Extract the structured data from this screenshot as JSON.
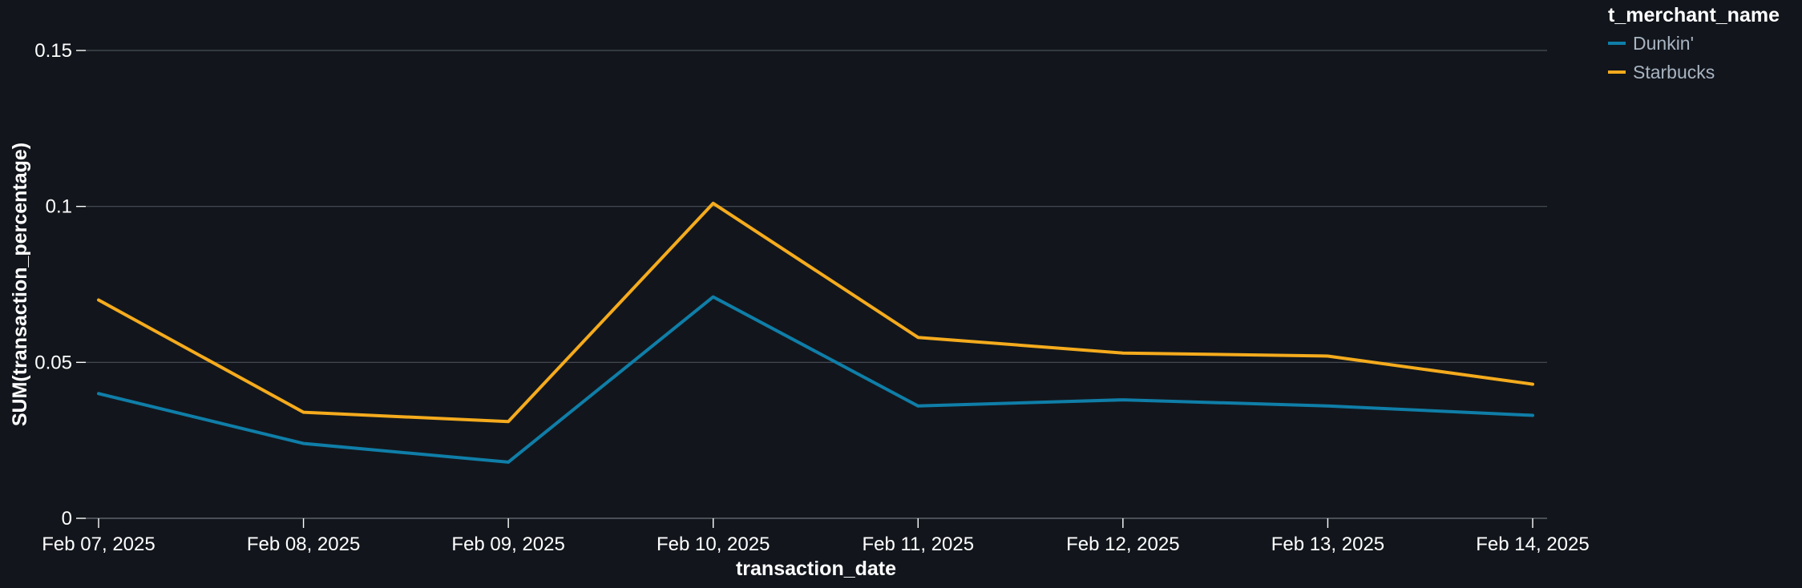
{
  "chart_data": {
    "type": "line",
    "x": [
      "Feb 07, 2025",
      "Feb 08, 2025",
      "Feb 09, 2025",
      "Feb 10, 2025",
      "Feb 11, 2025",
      "Feb 12, 2025",
      "Feb 13, 2025",
      "Feb 14, 2025"
    ],
    "series": [
      {
        "name": "Dunkin'",
        "color": "#0f7ea8",
        "values": [
          0.04,
          0.024,
          0.018,
          0.071,
          0.036,
          0.038,
          0.036,
          0.033
        ]
      },
      {
        "name": "Starbucks",
        "color": "#f5ab1d",
        "values": [
          0.07,
          0.034,
          0.031,
          0.101,
          0.058,
          0.053,
          0.052,
          0.043
        ]
      }
    ],
    "xlabel": "transaction_date",
    "ylabel": "SUM(transaction_percentage)",
    "ylim": [
      0,
      0.15
    ],
    "yticks": [
      0,
      0.05,
      0.1,
      0.15
    ],
    "ytick_labels": [
      "0",
      "0.05",
      "0.1",
      "0.15"
    ],
    "grid": true,
    "legend": {
      "title": "t_merchant_name",
      "position": "top-right"
    }
  }
}
